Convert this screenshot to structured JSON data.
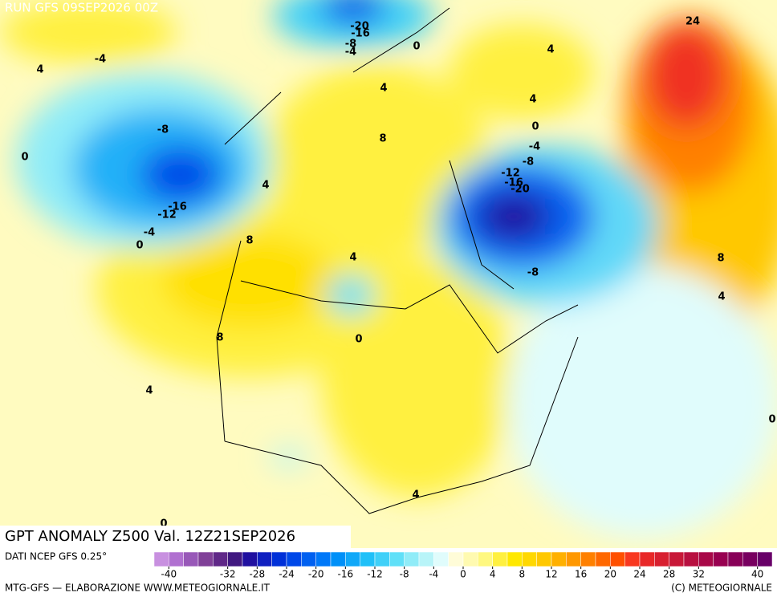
{
  "header": {
    "run": "RUN GFS 09SEP2026 00Z"
  },
  "title": "GPT ANOMALY Z500 Val. 12Z21SEP2026",
  "footer": {
    "source": "DATI NCEP GFS 0.25°",
    "credit": "MTG-GFS — ELABORAZIONE WWW.METEOGIORNALE.IT",
    "copyright": "(C) METEOGIORNALE"
  },
  "colorbar": {
    "range": [
      -42,
      42
    ],
    "colors": [
      "#c890e0",
      "#b070d0",
      "#9858b8",
      "#804098",
      "#602888",
      "#401880",
      "#2010a0",
      "#1020c0",
      "#0030d8",
      "#0048e8",
      "#0060f0",
      "#0078f8",
      "#0090f8",
      "#10a8f8",
      "#20c0f8",
      "#40d0f8",
      "#60e0f8",
      "#90ecf8",
      "#b8f4f8",
      "#e0fcfc",
      "#fffcd8",
      "#fffab0",
      "#fff880",
      "#fff040",
      "#ffe800",
      "#ffd800",
      "#ffc800",
      "#ffb000",
      "#ff9800",
      "#ff8000",
      "#ff6800",
      "#ff5000",
      "#f83820",
      "#e82828",
      "#d82030",
      "#c81838",
      "#b81040",
      "#a80848",
      "#980050",
      "#880058",
      "#780060",
      "#680068"
    ],
    "ticks": [
      -40,
      -32,
      -28,
      -24,
      -20,
      -16,
      -12,
      -8,
      -4,
      0,
      4,
      8,
      12,
      16,
      20,
      24,
      28,
      32,
      40
    ]
  },
  "contour_labels": [
    24,
    4,
    4,
    0,
    -4,
    -8,
    -12,
    -16,
    -20,
    -8,
    8,
    4,
    0,
    -20,
    -16,
    -8,
    -4,
    0,
    4,
    8,
    -4,
    4,
    -8,
    0,
    4,
    -16,
    -12,
    -4,
    0,
    8,
    4,
    0,
    8,
    4,
    4,
    0
  ]
}
